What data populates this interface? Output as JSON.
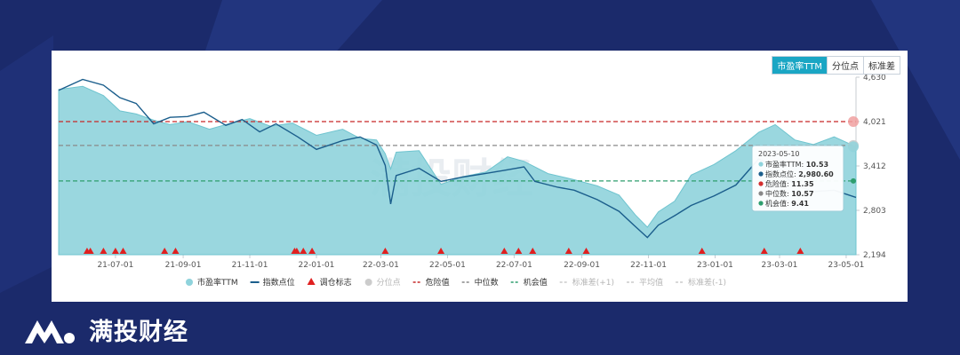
{
  "watermark": "满投财经",
  "brand": {
    "name": "满投财经"
  },
  "tabs": [
    {
      "label": "市盈率TTM",
      "active": true
    },
    {
      "label": "分位点",
      "active": false
    },
    {
      "label": "标准差",
      "active": false
    }
  ],
  "tooltip": {
    "date": "2023-05-10",
    "rows": [
      {
        "label": "市盈率TTM:",
        "value": "10.53",
        "color": "#8fd3dc"
      },
      {
        "label": "指数点位:",
        "value": "2,980.60",
        "color": "#1b5e8c"
      },
      {
        "label": "危险值:",
        "value": "11.35",
        "color": "#d32f2f"
      },
      {
        "label": "中位数:",
        "value": "10.57",
        "color": "#888888"
      },
      {
        "label": "机会值:",
        "value": "9.41",
        "color": "#2e9e6e"
      }
    ]
  },
  "legend": [
    {
      "label": "市盈率TTM",
      "kind": "dot",
      "color": "#8fd3dc",
      "muted": false
    },
    {
      "label": "指数点位",
      "kind": "line",
      "color": "#1b5e8c",
      "muted": false
    },
    {
      "label": "调仓标志",
      "kind": "triangle",
      "color": "#e02020",
      "muted": false
    },
    {
      "label": "分位点",
      "kind": "dot",
      "color": "#cccccc",
      "muted": true
    },
    {
      "label": "危险值",
      "kind": "dash",
      "color": "#c62828",
      "muted": false
    },
    {
      "label": "中位数",
      "kind": "dash",
      "color": "#888888",
      "muted": false
    },
    {
      "label": "机会值",
      "kind": "dash",
      "color": "#2e9e6e",
      "muted": false
    },
    {
      "label": "标准差(+1)",
      "kind": "dash",
      "color": "#cccccc",
      "muted": true
    },
    {
      "label": "平均值",
      "kind": "dash",
      "color": "#cccccc",
      "muted": true
    },
    {
      "label": "标准差(-1)",
      "kind": "dash",
      "color": "#cccccc",
      "muted": true
    }
  ],
  "chart_data": {
    "type": "line",
    "x_ticks": [
      "21-07-01",
      "21-09-01",
      "21-11-01",
      "22-01-01",
      "22-03-01",
      "22-05-01",
      "22-07-01",
      "22-09-01",
      "22-11-01",
      "23-01-01",
      "23-03-01",
      "23-05-01"
    ],
    "x_range": [
      "2021-05-10",
      "2023-05-10"
    ],
    "y_right_ticks": [
      "4,630",
      "4,021",
      "3,412",
      "2,803",
      "2,194"
    ],
    "y_right_range": [
      2194,
      4630
    ],
    "pe_axis_range": [
      7.0,
      12.8
    ],
    "reference_lines": {
      "danger": 11.35,
      "median": 10.57,
      "opportunity": 9.41
    },
    "series": [
      {
        "name": "市盈率TTM",
        "kind": "area",
        "points": [
          [
            "2021-05-10",
            12.4
          ],
          [
            "2021-06-01",
            12.5
          ],
          [
            "2021-06-20",
            12.2
          ],
          [
            "2021-07-05",
            11.7
          ],
          [
            "2021-07-20",
            11.6
          ],
          [
            "2021-08-05",
            11.4
          ],
          [
            "2021-08-20",
            11.25
          ],
          [
            "2021-09-05",
            11.35
          ],
          [
            "2021-09-25",
            11.1
          ],
          [
            "2021-10-15",
            11.3
          ],
          [
            "2021-11-01",
            11.45
          ],
          [
            "2021-11-20",
            11.2
          ],
          [
            "2021-12-10",
            11.3
          ],
          [
            "2022-01-01",
            10.9
          ],
          [
            "2022-01-25",
            11.1
          ],
          [
            "2022-02-10",
            10.8
          ],
          [
            "2022-02-25",
            10.75
          ],
          [
            "2022-03-05",
            10.3
          ],
          [
            "2022-03-10",
            9.8
          ],
          [
            "2022-03-15",
            10.35
          ],
          [
            "2022-04-05",
            10.4
          ],
          [
            "2022-04-25",
            9.3
          ],
          [
            "2022-05-15",
            9.55
          ],
          [
            "2022-06-05",
            9.7
          ],
          [
            "2022-06-25",
            10.2
          ],
          [
            "2022-07-10",
            10.05
          ],
          [
            "2022-08-01",
            9.65
          ],
          [
            "2022-08-25",
            9.45
          ],
          [
            "2022-09-15",
            9.25
          ],
          [
            "2022-10-05",
            8.95
          ],
          [
            "2022-10-20",
            8.3
          ],
          [
            "2022-10-31",
            7.9
          ],
          [
            "2022-11-10",
            8.4
          ],
          [
            "2022-11-25",
            8.75
          ],
          [
            "2022-12-10",
            9.6
          ],
          [
            "2022-12-31",
            9.95
          ],
          [
            "2023-01-20",
            10.4
          ],
          [
            "2023-02-10",
            11.0
          ],
          [
            "2023-02-25",
            11.25
          ],
          [
            "2023-03-15",
            10.75
          ],
          [
            "2023-04-01",
            10.6
          ],
          [
            "2023-04-20",
            10.85
          ],
          [
            "2023-05-10",
            10.53
          ]
        ]
      },
      {
        "name": "指数点位",
        "kind": "line",
        "points": [
          [
            "2021-05-10",
            4450
          ],
          [
            "2021-06-01",
            4600
          ],
          [
            "2021-06-20",
            4520
          ],
          [
            "2021-07-05",
            4350
          ],
          [
            "2021-07-20",
            4270
          ],
          [
            "2021-08-05",
            3990
          ],
          [
            "2021-08-20",
            4080
          ],
          [
            "2021-09-05",
            4090
          ],
          [
            "2021-09-20",
            4150
          ],
          [
            "2021-10-10",
            3970
          ],
          [
            "2021-10-25",
            4050
          ],
          [
            "2021-11-10",
            3880
          ],
          [
            "2021-11-25",
            3990
          ],
          [
            "2021-12-15",
            3810
          ],
          [
            "2022-01-01",
            3640
          ],
          [
            "2022-01-25",
            3760
          ],
          [
            "2022-02-10",
            3810
          ],
          [
            "2022-02-25",
            3700
          ],
          [
            "2022-03-05",
            3420
          ],
          [
            "2022-03-10",
            2890
          ],
          [
            "2022-03-15",
            3280
          ],
          [
            "2022-04-05",
            3380
          ],
          [
            "2022-04-25",
            3200
          ],
          [
            "2022-05-15",
            3260
          ],
          [
            "2022-06-05",
            3310
          ],
          [
            "2022-06-25",
            3360
          ],
          [
            "2022-07-10",
            3400
          ],
          [
            "2022-07-20",
            3200
          ],
          [
            "2022-08-10",
            3120
          ],
          [
            "2022-08-25",
            3080
          ],
          [
            "2022-09-15",
            2950
          ],
          [
            "2022-10-05",
            2790
          ],
          [
            "2022-10-20",
            2580
          ],
          [
            "2022-10-31",
            2430
          ],
          [
            "2022-11-10",
            2600
          ],
          [
            "2022-11-25",
            2730
          ],
          [
            "2022-12-10",
            2870
          ],
          [
            "2022-12-31",
            3000
          ],
          [
            "2023-01-20",
            3150
          ],
          [
            "2023-02-10",
            3510
          ],
          [
            "2023-02-25",
            3390
          ],
          [
            "2023-03-15",
            3150
          ],
          [
            "2023-04-01",
            3060
          ],
          [
            "2023-04-20",
            3080
          ],
          [
            "2023-05-10",
            2980.6
          ]
        ]
      }
    ],
    "rebalance_markers": [
      "2021-06-05",
      "2021-06-08",
      "2021-06-20",
      "2021-07-01",
      "2021-07-08",
      "2021-08-15",
      "2021-08-25",
      "2021-12-12",
      "2021-12-14",
      "2021-12-20",
      "2021-12-28",
      "2022-03-05",
      "2022-04-25",
      "2022-06-22",
      "2022-07-05",
      "2022-07-18",
      "2022-08-20",
      "2022-09-05",
      "2022-12-20",
      "2023-02-15",
      "2023-03-20"
    ]
  }
}
